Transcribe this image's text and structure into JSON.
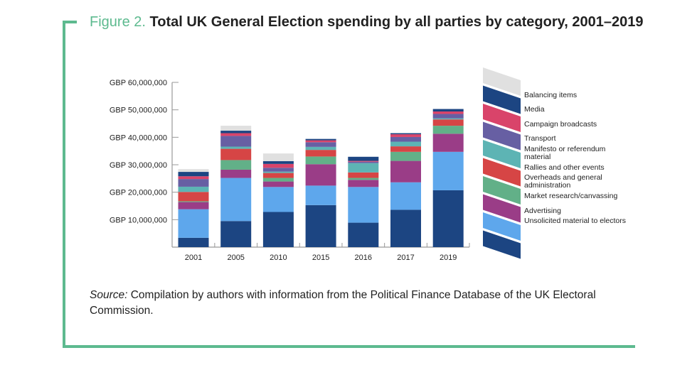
{
  "title": {
    "figure": "Figure 2.",
    "text": "Total UK General Election spending by all parties by category, 2001–2019"
  },
  "source": {
    "label": "Source:",
    "text": "Compilation by authors with information from the Political Finance Database of the UK Electoral Commission."
  },
  "chart_data": {
    "type": "stacked-bar",
    "title": "Total UK General Election spending by all parties by category, 2001–2019",
    "xlabel": "",
    "ylabel": "",
    "ylim": [
      0,
      60000000
    ],
    "y_ticks": [
      "GBP 10,000,000",
      "GBP 20,000,000",
      "GBP 30,000,000",
      "GBP 40,000,000",
      "GBP 50,000,000",
      "GBP 60,000,000"
    ],
    "categories": [
      "2001",
      "2005",
      "2010",
      "2015",
      "2016",
      "2017",
      "2019"
    ],
    "legend_position": "right",
    "units": "GBP",
    "series": [
      {
        "name": "Unsolicited material to electors",
        "color": "#1c4582",
        "values": [
          3400000,
          9500000,
          12800000,
          15300000,
          8900000,
          13600000,
          20700000
        ]
      },
      {
        "name": "Advertising",
        "color": "#5ea7ec",
        "values": [
          10400000,
          15700000,
          9100000,
          7100000,
          13000000,
          10000000,
          14000000
        ]
      },
      {
        "name": "Market research/canvassing",
        "color": "#9a3d87",
        "values": [
          2600000,
          3000000,
          2000000,
          7800000,
          2600000,
          7800000,
          6600000
        ]
      },
      {
        "name": "Overheads and general administration",
        "color": "#62b088",
        "values": [
          300000,
          3500000,
          1300000,
          2800000,
          700000,
          3300000,
          2900000
        ]
      },
      {
        "name": "Rallies and other events",
        "color": "#d64545",
        "values": [
          3400000,
          4100000,
          1800000,
          2400000,
          2000000,
          2000000,
          2300000
        ]
      },
      {
        "name": "Manifesto or referendum material",
        "color": "#5db4b4",
        "values": [
          1900000,
          800000,
          500000,
          1100000,
          3400000,
          1700000,
          400000
        ]
      },
      {
        "name": "Transport",
        "color": "#675fa3",
        "values": [
          2800000,
          3900000,
          1400000,
          1700000,
          500000,
          1700000,
          1600000
        ]
      },
      {
        "name": "Campaign broadcasts",
        "color": "#d9446a",
        "values": [
          1000000,
          1000000,
          1400000,
          700000,
          300000,
          1000000,
          900000
        ]
      },
      {
        "name": "Media",
        "color": "#1c4582",
        "values": [
          1600000,
          900000,
          1000000,
          500000,
          1500000,
          400000,
          900000
        ]
      },
      {
        "name": "Balancing items",
        "color": "#e0e0e0",
        "values": [
          1000000,
          1800000,
          2800000,
          0,
          0,
          0,
          0
        ]
      }
    ]
  }
}
